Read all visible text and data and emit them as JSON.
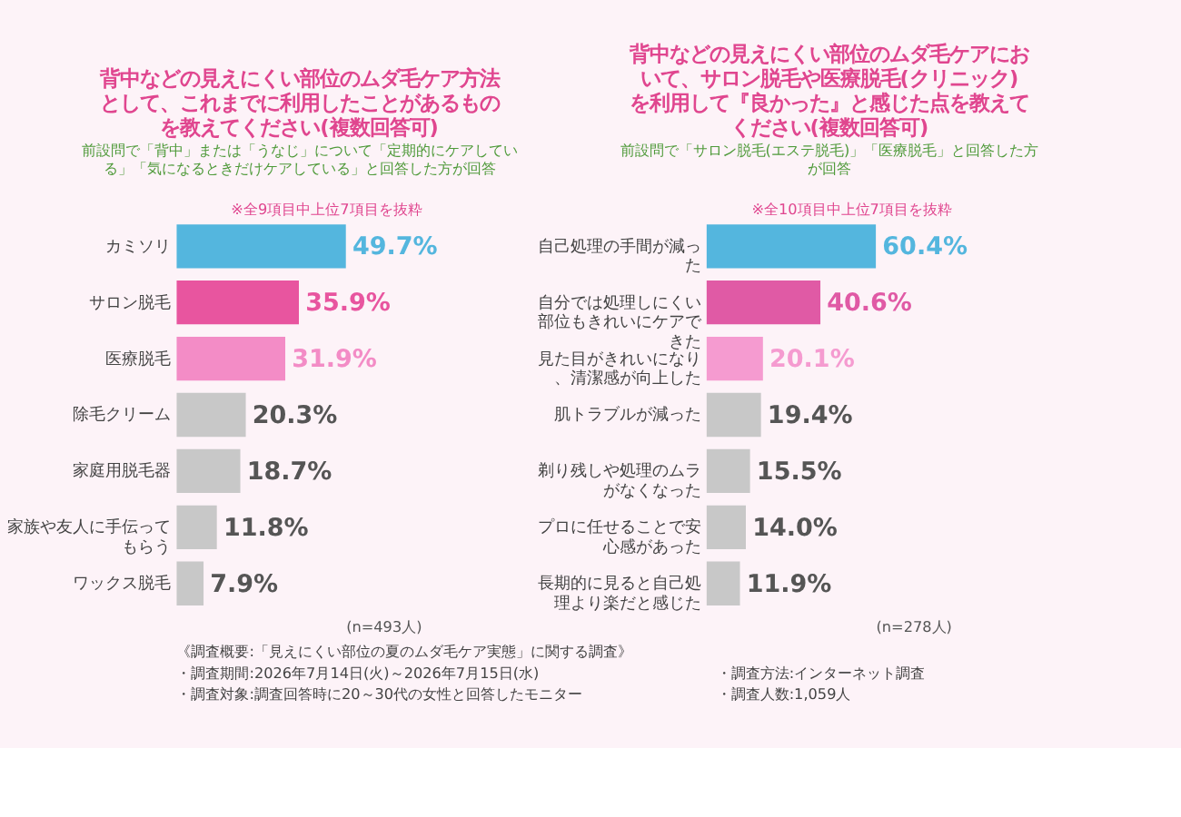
{
  "chart_data": [
    {
      "type": "bar",
      "orientation": "horizontal",
      "title": "背中などの見えにくい部位のムダ毛ケア方法として、これまでに利用したことがあるものを教えてください(複数回答可)",
      "subtitle": "前設問で「背中」または「うなじ」について「定期的にケアしている」「気になるときだけケアしている」と回答した方が回答",
      "annotations": [
        "※全9項目中上位7項目を抜粋",
        "(n=493人)"
      ],
      "categories": [
        "カミソリ",
        "サロン脱毛",
        "医療脱毛",
        "除毛クリーム",
        "家庭用脱毛器",
        "家族や友人に手伝ってもらう",
        "ワックス脱毛"
      ],
      "values": [
        49.7,
        35.9,
        31.9,
        20.3,
        18.7,
        11.8,
        7.9
      ],
      "value_labels": [
        "49.7%",
        "35.9%",
        "31.9%",
        "20.3%",
        "18.7%",
        "11.8%",
        "7.9%"
      ],
      "colors": [
        "#54b6de",
        "#e8559f",
        "#f38cc6",
        "#c8c8c8",
        "#c8c8c8",
        "#c8c8c8",
        "#c8c8c8"
      ]
    },
    {
      "type": "bar",
      "orientation": "horizontal",
      "title": "背中などの見えにくい部位のムダ毛ケアにおいて、サロン脱毛や医療脱毛(クリニック)を利用して『良かった』と感じた点を教えてください(複数回答可)",
      "subtitle": "前設問で「サロン脱毛(エステ脱毛)」「医療脱毛」と回答した方が回答",
      "annotations": [
        "※全10項目中上位7項目を抜粋",
        "(n=278人)"
      ],
      "categories": [
        "自己処理の手間が減った",
        "自分では処理しにくい部位もきれいにケアできた",
        "見た目がきれいになり、清潔感が向上した",
        "肌トラブルが減った",
        "剃り残しや処理のムラがなくなった",
        "プロに任せることで安心感があった",
        "長期的に見ると自己処理より楽だと感じた"
      ],
      "values": [
        60.4,
        40.6,
        20.1,
        19.4,
        15.5,
        14.0,
        11.9
      ],
      "value_labels": [
        "60.4%",
        "40.6%",
        "20.1%",
        "19.4%",
        "15.5%",
        "14.0%",
        "11.9%"
      ],
      "colors": [
        "#54b6de",
        "#e05aa5",
        "#f59bd0",
        "#c8c8c8",
        "#c8c8c8",
        "#c8c8c8",
        "#c8c8c8"
      ]
    },
    {
      "type": "other",
      "annotations": [
        "《調査概要:「見えにくい部位の夏のムダ毛ケア実態」に関する調査》",
        "・調査期間:2026年7月14日(火)～2026年7月15日(水)",
        "・調査方法:インターネット調査",
        "・調査対象:調査回答時に20～30代の女性と回答したモニター",
        "・調査人数:1,059人"
      ]
    }
  ]
}
